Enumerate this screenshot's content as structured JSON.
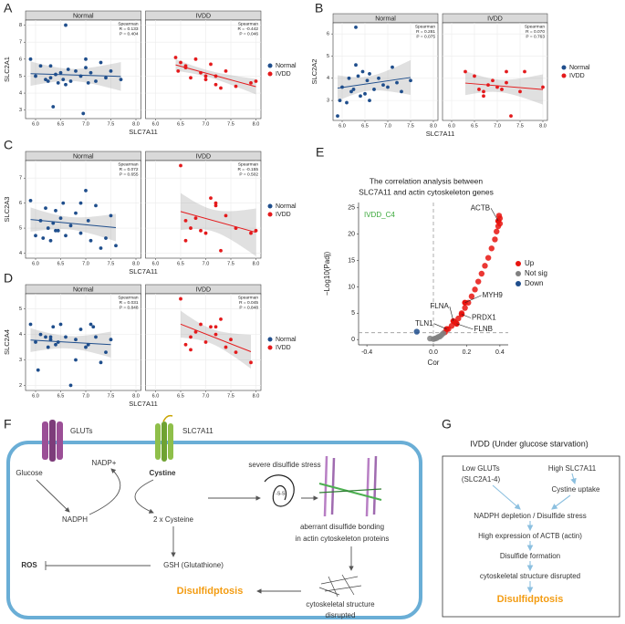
{
  "chart_data": [
    {
      "type": "facet-scatter",
      "panel": "A",
      "xlabel": "SLC7A11",
      "ylabel": "SLC2A1",
      "legend": "right",
      "xlim": [
        5.8,
        8.1
      ],
      "xticks": [
        {
          "value": 6,
          "label": "6.0"
        },
        6.5,
        {
          "value": 7,
          "label": "7.0"
        },
        7.5,
        {
          "value": 8,
          "label": "8.0"
        }
      ],
      "ylim": [
        2.5,
        8.3
      ],
      "yticks": [
        3,
        4,
        5,
        6,
        7,
        8
      ],
      "series": [
        {
          "name": "Normal",
          "color": "#1f4e8c",
          "stats": [
            "Spearman",
            "R = 0.133",
            "P = 0.404"
          ],
          "x": [
            5.9,
            6.0,
            6.1,
            6.2,
            6.25,
            6.3,
            6.35,
            6.4,
            6.45,
            6.5,
            6.55,
            6.6,
            6.65,
            6.7,
            6.8,
            6.9,
            6.95,
            7.0,
            7.05,
            7.1,
            7.2,
            7.3,
            7.4,
            7.5,
            7.7,
            6.3,
            6.6,
            7.0
          ],
          "values": [
            6.0,
            5.0,
            5.6,
            4.8,
            4.7,
            4.9,
            3.2,
            5.1,
            4.6,
            5.2,
            4.8,
            8.0,
            5.4,
            4.7,
            5.3,
            5.0,
            2.8,
            5.5,
            4.6,
            5.2,
            4.7,
            5.8,
            4.9,
            5.3,
            4.8,
            5.6,
            4.5,
            6.0
          ]
        },
        {
          "name": "IVDD",
          "color": "#e41a1c",
          "stats": [
            "Spearman",
            "R = -0.442",
            "P = 0.046"
          ],
          "x": [
            6.4,
            6.45,
            6.5,
            6.6,
            6.7,
            6.8,
            6.9,
            7.0,
            7.1,
            7.2,
            7.3,
            7.4,
            7.6,
            7.9,
            8.0,
            6.6,
            7.0,
            7.2
          ],
          "values": [
            6.1,
            5.3,
            5.8,
            5.5,
            4.9,
            6.0,
            5.2,
            5.0,
            5.7,
            4.5,
            4.3,
            5.3,
            4.4,
            4.6,
            4.7,
            5.6,
            4.8,
            5.0
          ]
        }
      ]
    },
    {
      "type": "facet-scatter",
      "panel": "B",
      "xlabel": "SLC7A11",
      "ylabel": "SLC2A2",
      "legend": "right",
      "xlim": [
        5.8,
        8.1
      ],
      "xticks": [
        {
          "value": 6,
          "label": "6.0"
        },
        6.5,
        {
          "value": 7,
          "label": "7.0"
        },
        7.5,
        {
          "value": 8,
          "label": "8.0"
        }
      ],
      "ylim": [
        2.1,
        6.5
      ],
      "yticks": [
        3,
        4,
        5,
        6
      ],
      "series": [
        {
          "name": "Normal",
          "color": "#1f4e8c",
          "stats": [
            "Spearman",
            "R = 0.281",
            "P = 0.075"
          ],
          "x": [
            5.9,
            5.95,
            6.0,
            6.1,
            6.15,
            6.2,
            6.25,
            6.3,
            6.35,
            6.4,
            6.45,
            6.5,
            6.55,
            6.6,
            6.7,
            6.8,
            6.9,
            7.0,
            7.1,
            7.2,
            7.3,
            7.5,
            6.3,
            6.6
          ],
          "values": [
            2.3,
            3.0,
            3.6,
            2.9,
            4.0,
            3.4,
            3.5,
            6.3,
            4.1,
            3.2,
            4.3,
            3.3,
            3.9,
            4.2,
            3.5,
            4.0,
            3.7,
            3.6,
            4.5,
            3.8,
            3.4,
            3.9,
            4.6,
            3.0
          ]
        },
        {
          "name": "IVDD",
          "color": "#e41a1c",
          "stats": [
            "Spearman",
            "R = 0.070",
            "P = 0.763"
          ],
          "x": [
            6.3,
            6.5,
            6.6,
            6.7,
            6.8,
            6.9,
            7.0,
            7.1,
            7.2,
            7.3,
            7.5,
            7.6,
            8.0,
            6.7,
            7.2
          ],
          "values": [
            4.3,
            4.1,
            3.5,
            3.4,
            3.7,
            3.9,
            3.6,
            3.5,
            4.3,
            2.3,
            3.4,
            4.3,
            3.6,
            3.2,
            3.8
          ]
        }
      ]
    },
    {
      "type": "facet-scatter",
      "panel": "C",
      "xlabel": "SLC7A11",
      "ylabel": "SLC2A3",
      "legend": "right",
      "xlim": [
        5.8,
        8.1
      ],
      "xticks": [
        {
          "value": 6,
          "label": "6.0"
        },
        6.5,
        {
          "value": 7,
          "label": "7.0"
        },
        7.5,
        {
          "value": 8,
          "label": "8.0"
        }
      ],
      "ylim": [
        3.8,
        7.7
      ],
      "yticks": [
        4,
        5,
        6,
        7
      ],
      "series": [
        {
          "name": "Normal",
          "color": "#1f4e8c",
          "stats": [
            "Spearman",
            "R = 0.072",
            "P = 0.655"
          ],
          "x": [
            5.9,
            6.0,
            6.1,
            6.15,
            6.2,
            6.25,
            6.3,
            6.35,
            6.4,
            6.45,
            6.5,
            6.55,
            6.6,
            6.7,
            6.8,
            6.9,
            7.0,
            7.05,
            7.1,
            7.2,
            7.3,
            7.4,
            7.5,
            7.6,
            6.4,
            6.9
          ],
          "values": [
            6.1,
            4.7,
            5.3,
            4.6,
            5.8,
            5.0,
            4.5,
            5.2,
            5.7,
            4.9,
            5.4,
            6.0,
            4.7,
            5.1,
            5.6,
            4.8,
            6.5,
            5.3,
            4.5,
            5.9,
            4.2,
            4.6,
            5.5,
            4.3,
            4.9,
            6.0
          ]
        },
        {
          "name": "IVDD",
          "color": "#e41a1c",
          "stats": [
            "Spearman",
            "R = -0.155",
            "P = 0.502"
          ],
          "x": [
            6.5,
            6.6,
            6.7,
            6.8,
            6.9,
            7.0,
            7.1,
            7.2,
            7.3,
            7.4,
            7.6,
            7.9,
            8.0,
            6.6,
            7.2
          ],
          "values": [
            7.5,
            5.3,
            5.0,
            5.4,
            4.9,
            4.8,
            6.2,
            6.0,
            4.1,
            5.5,
            5.0,
            4.8,
            4.9,
            4.5,
            5.9
          ]
        }
      ]
    },
    {
      "type": "facet-scatter",
      "panel": "D",
      "xlabel": "SLC7A11",
      "ylabel": "SLC2A4",
      "legend": "right",
      "xlim": [
        5.8,
        8.1
      ],
      "xticks": [
        {
          "value": 6,
          "label": "6.0"
        },
        6.5,
        {
          "value": 7,
          "label": "7.0"
        },
        7.5,
        {
          "value": 8,
          "label": "8.0"
        }
      ],
      "ylim": [
        1.8,
        5.6
      ],
      "yticks": [
        2,
        3,
        4,
        5
      ],
      "series": [
        {
          "name": "Normal",
          "color": "#1f4e8c",
          "stats": [
            "Spearman",
            "R = 0.031",
            "P = 0.848"
          ],
          "x": [
            5.9,
            6.0,
            6.05,
            6.1,
            6.2,
            6.25,
            6.3,
            6.35,
            6.4,
            6.45,
            6.5,
            6.6,
            6.7,
            6.8,
            6.9,
            7.0,
            7.05,
            7.1,
            7.2,
            7.3,
            7.4,
            7.5,
            6.3,
            6.8,
            7.15
          ],
          "values": [
            4.4,
            3.7,
            2.6,
            4.0,
            3.9,
            3.5,
            3.8,
            4.3,
            3.6,
            3.7,
            4.4,
            3.9,
            2.0,
            3.8,
            4.2,
            3.5,
            3.6,
            4.4,
            3.9,
            2.9,
            3.3,
            3.8,
            3.9,
            3.0,
            4.3
          ]
        },
        {
          "name": "IVDD",
          "color": "#e41a1c",
          "stats": [
            "Spearman",
            "R = 0.045",
            "P = 0.848"
          ],
          "x": [
            6.5,
            6.6,
            6.7,
            6.8,
            6.9,
            7.0,
            7.1,
            7.2,
            7.3,
            7.4,
            7.5,
            7.6,
            7.9,
            6.7,
            7.2
          ],
          "values": [
            5.4,
            3.6,
            3.9,
            4.1,
            4.4,
            3.7,
            4.3,
            4.0,
            4.6,
            3.5,
            3.8,
            3.3,
            2.9,
            3.4,
            4.3
          ]
        }
      ]
    },
    {
      "type": "volcano",
      "panel": "E",
      "title": [
        "The correlation analysis between",
        "SLC7A11 and actin cytoskeleton genes"
      ],
      "annotation": "IVDD_C4",
      "xlabel": "Cor",
      "ylabel": "−Log10(Padj)",
      "legend": "right",
      "xlim": [
        -0.45,
        0.45
      ],
      "xticks": [
        -0.4,
        {
          "value": 0,
          "label": "0.0"
        },
        0.2,
        0.4
      ],
      "ylim": [
        -1,
        26
      ],
      "yticks": [
        0,
        5,
        10,
        15,
        20,
        25
      ],
      "vline": 0,
      "hline": 1.3,
      "series": [
        {
          "name": "Up",
          "color": "#e8140f",
          "x": [
            0.07,
            0.09,
            0.11,
            0.13,
            0.15,
            0.17,
            0.19,
            0.21,
            0.23,
            0.25,
            0.27,
            0.29,
            0.31,
            0.33,
            0.35,
            0.37,
            0.38,
            0.39,
            0.4,
            0.4,
            0.395
          ],
          "values": [
            1.4,
            2,
            2.6,
            3.3,
            4,
            5,
            6,
            7,
            8.2,
            9.5,
            11,
            12.5,
            14,
            15.5,
            17.3,
            19,
            20.5,
            21.5,
            23,
            22,
            23.5
          ]
        },
        {
          "name": "Not sig",
          "color": "#808080",
          "x": [
            0,
            0.02,
            0.04,
            0.05,
            0.06,
            -0.02,
            0.03,
            0.01
          ],
          "values": [
            0.1,
            0.3,
            0.6,
            0.9,
            1.2,
            0.2,
            0.5,
            0.2
          ]
        },
        {
          "name": "Down",
          "color": "#1f4e8c",
          "x": [
            -0.1
          ],
          "values": [
            1.5
          ]
        }
      ],
      "genes": [
        {
          "name": "ACTB",
          "x": 0.39,
          "y": 22.5
        },
        {
          "name": "MYH9",
          "x": 0.19,
          "y": 7
        },
        {
          "name": "FLNA",
          "x": 0.12,
          "y": 3.5
        },
        {
          "name": "PRDX1",
          "x": 0.17,
          "y": 4.8
        },
        {
          "name": "TLN1",
          "x": 0.08,
          "y": 2
        },
        {
          "name": "FLNB",
          "x": 0.14,
          "y": 3
        }
      ]
    }
  ],
  "figure_f": {
    "panel": "F",
    "gluts": "GLUTs",
    "slc7a11": "SLC7A11",
    "glucose": "Glucose",
    "cystine": "Cystine",
    "nadp": "NADP+",
    "nadph": "NADPH",
    "cysteine": "2 x Cysteine",
    "ros": "ROS",
    "gsh": "GSH (Glutathione)",
    "stress": "severe disulfide stress",
    "ss": "-S-S-",
    "bonding": [
      "aberrant disulfide bonding",
      "in actin cytoskeleton proteins"
    ],
    "disrupted": [
      "cytoskeletal structure",
      "disrupted"
    ],
    "outcome": "Disulfidptosis"
  },
  "figure_g": {
    "panel": "G",
    "title": "IVDD (Under glucose starvation)",
    "low_gluts": [
      "Low GLUTs",
      "(SLC2A1-4)"
    ],
    "high_slc7a11": "High SLC7A11",
    "uptake": "Cystine uptake",
    "nadph": "NADPH depletion / Disulfide stress",
    "actb": "High expression of ACTB (actin)",
    "formation": "Disulfide formation",
    "disrupted": "cytoskeletal structure disrupted",
    "outcome": "Disulfidptosis"
  }
}
